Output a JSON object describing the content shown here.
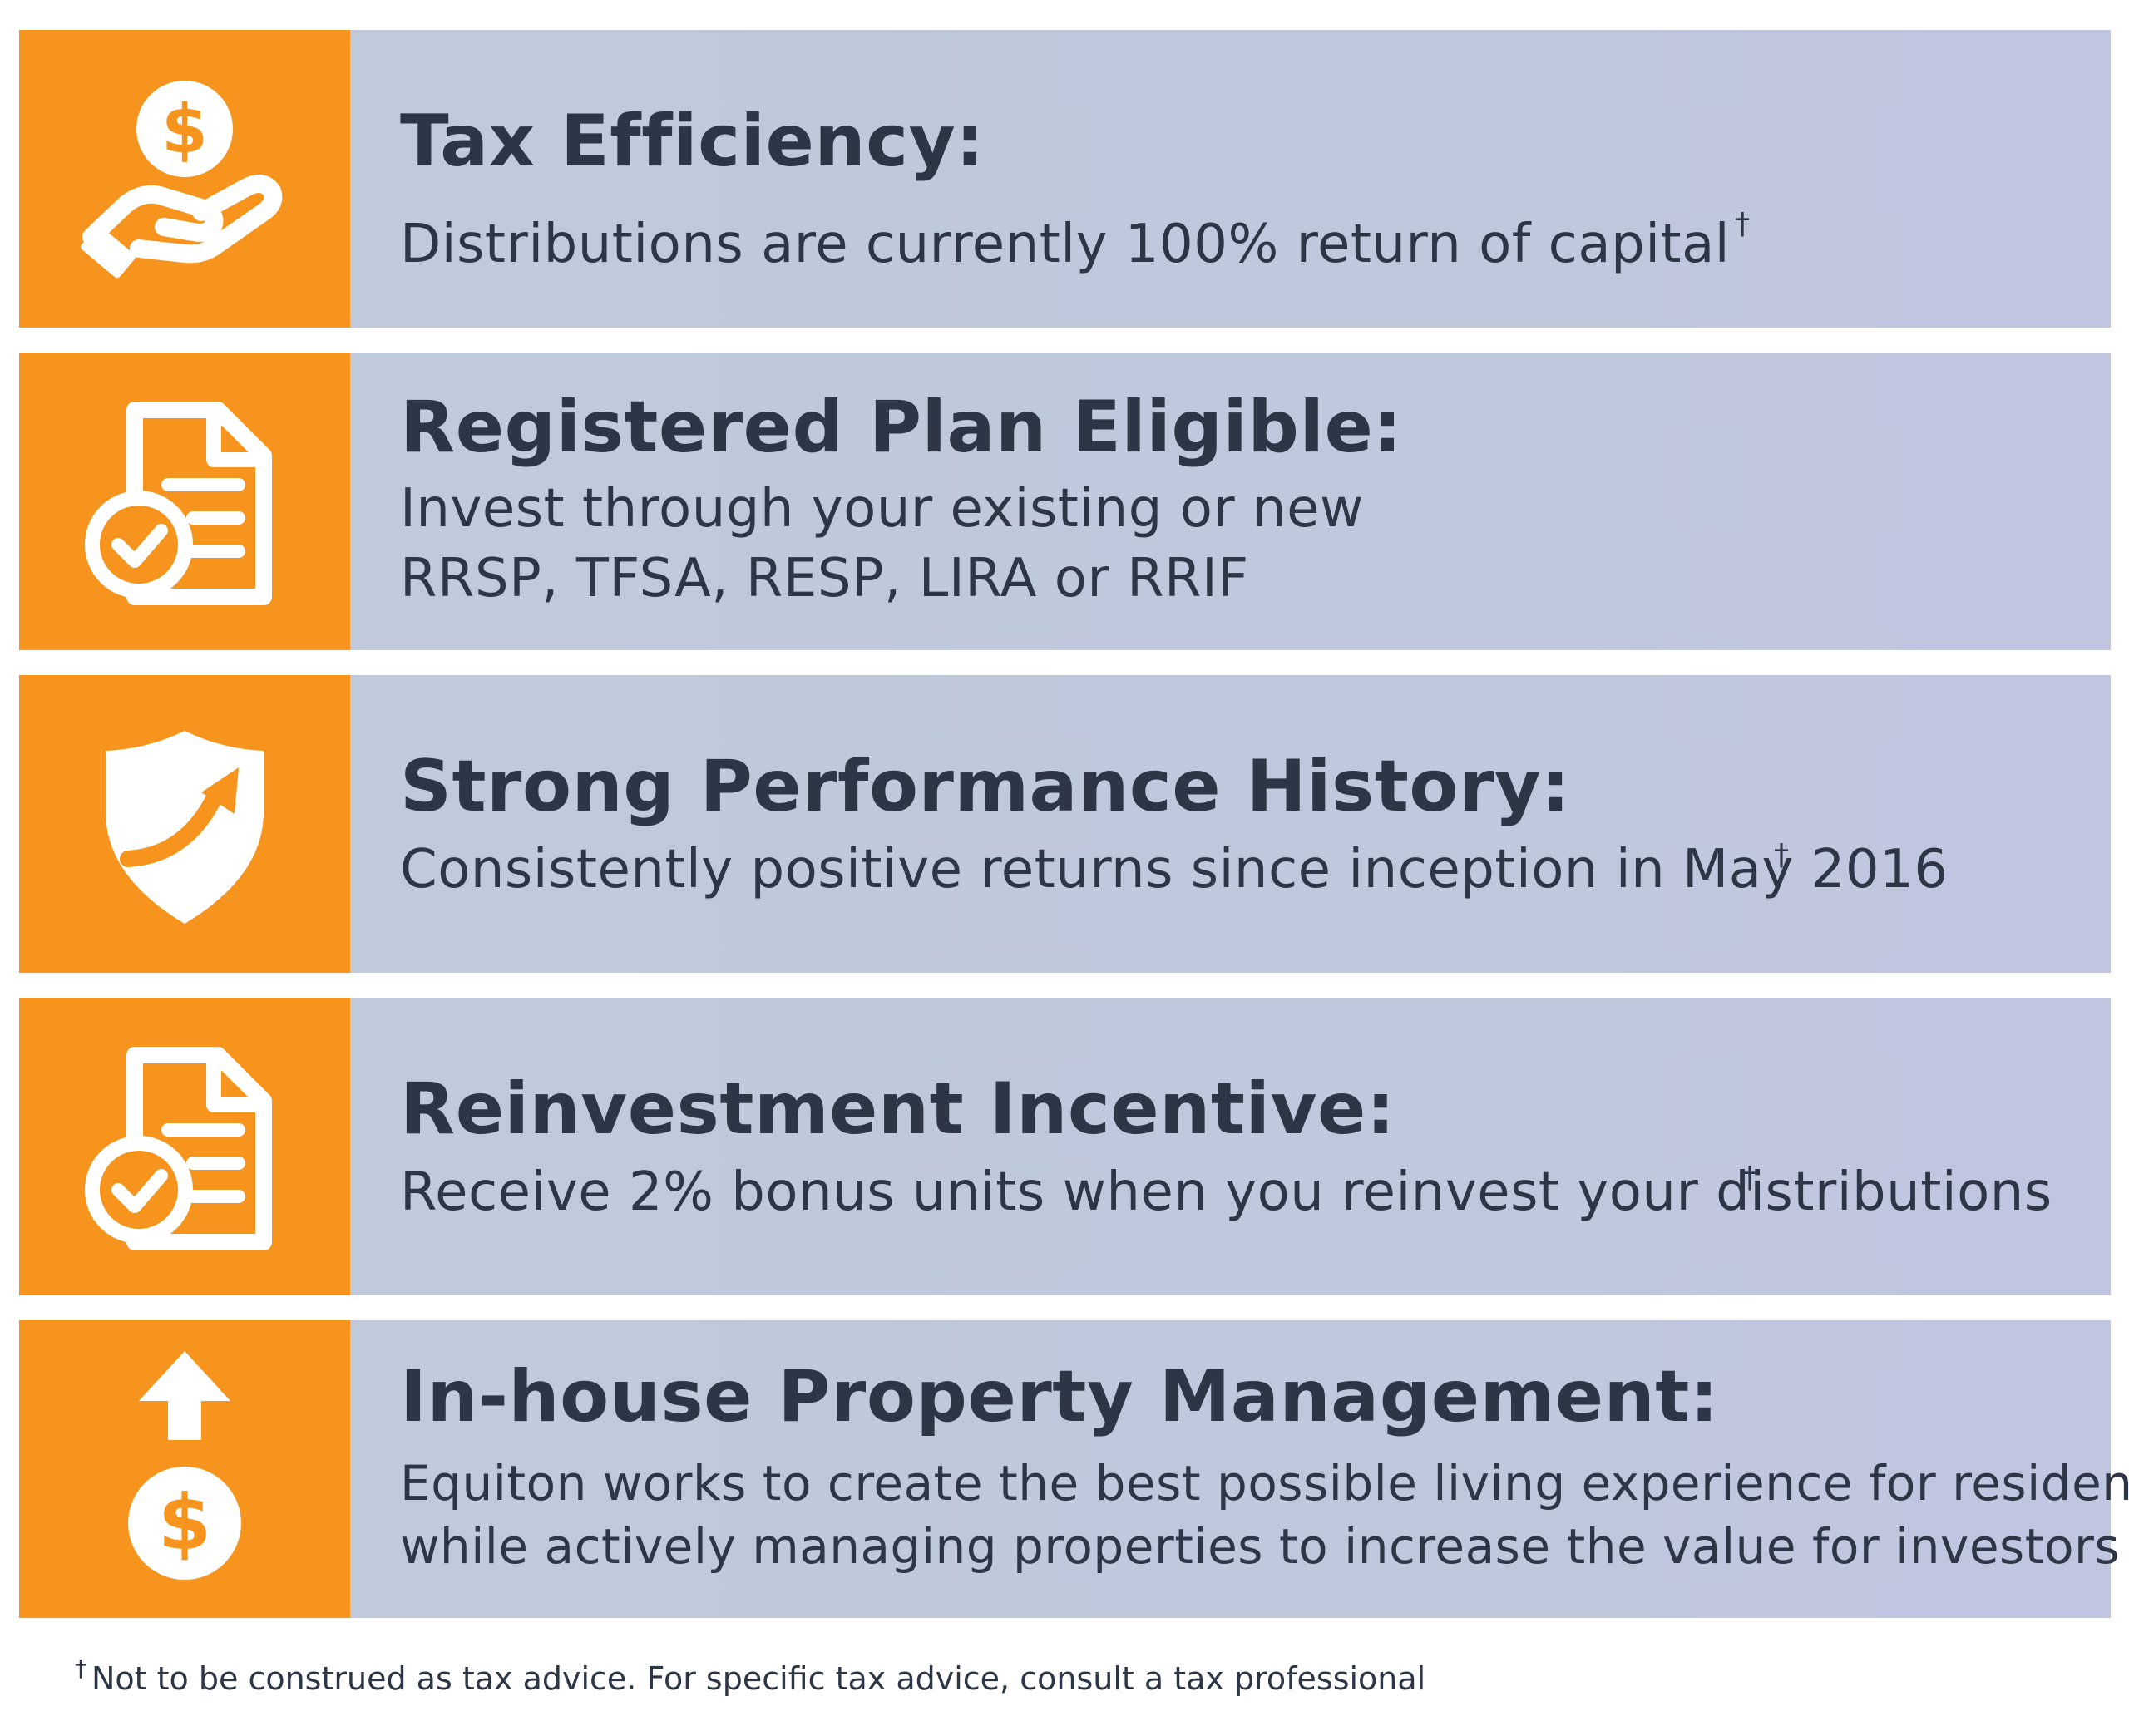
{
  "rows": [
    {
      "icon": "hand-coin-icon",
      "title": "Tax Efficiency:",
      "desc_lines": [
        "Distributions are currently 100% return of capital"
      ],
      "desc_suffix": "†"
    },
    {
      "icon": "document-check-icon",
      "title": "Registered Plan Eligible:",
      "desc_lines": [
        "Invest through your existing or new",
        "RRSP, TFSA, RESP, LIRA or RRIF"
      ]
    },
    {
      "icon": "shield-arrow-icon",
      "title": "Strong Performance History:",
      "desc_lines": [
        "Consistently positive returns since inception in May 2016"
      ],
      "overlay_mark": "†"
    },
    {
      "icon": "document-check-icon",
      "title": "Reinvestment Incentive:",
      "desc_lines": [
        "Receive 2% bonus units when you reinvest your distributions"
      ],
      "overlay_mark": "†"
    },
    {
      "icon": "arrow-up-coin-icon",
      "title": "In-house Property Management:",
      "desc_lines": [
        "Equiton works to create the best possible living experience for residents",
        "while actively managing properties to increase the value for investors"
      ]
    }
  ],
  "footnote": {
    "mark": "†",
    "text": "Not to be construed as tax advice. For specific tax advice, consult a tax professional"
  },
  "colors": {
    "orange": "#f7941d",
    "panel": "#bfc8dc",
    "text": "#2d3646"
  }
}
